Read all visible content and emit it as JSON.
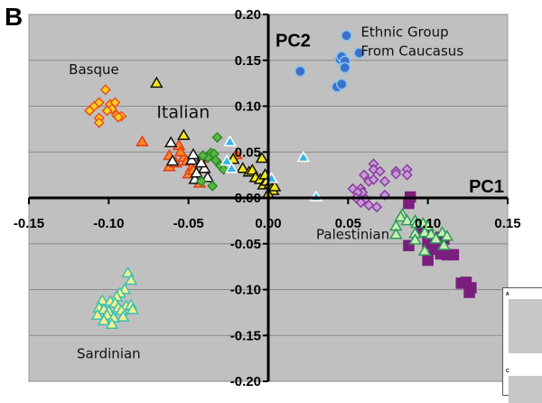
{
  "panel_label": "B",
  "chart_data": {
    "type": "scatter",
    "title": "",
    "xlabel": "PC1",
    "ylabel": "PC2",
    "xlim": [
      -0.15,
      0.15
    ],
    "ylim": [
      -0.2,
      0.2
    ],
    "grid": true,
    "background": "#c0c0c0",
    "x_ticks": [
      -0.15,
      -0.1,
      -0.05,
      0.0,
      0.05,
      0.1,
      0.15
    ],
    "x_tick_labels": [
      "-0.15",
      "-0.10",
      "-0.05",
      "0.00",
      "0.05",
      "0.10",
      "0.15"
    ],
    "y_ticks": [
      0.2,
      0.15,
      0.1,
      0.05,
      0.0,
      -0.05,
      -0.1,
      -0.15,
      -0.2
    ],
    "y_tick_labels": [
      "0.20",
      "0.15",
      "0.10",
      "0.05",
      "0.00",
      "-0.05",
      "-0.10",
      "-0.15",
      "-0.20"
    ],
    "annotations": [
      {
        "text": "Basque",
        "x": -0.125,
        "y": 0.135
      },
      {
        "text": "Italian",
        "x": -0.07,
        "y": 0.087
      },
      {
        "text": "Ethnic Group",
        "x": 0.058,
        "y": 0.176
      },
      {
        "text": "From Caucasus",
        "x": 0.058,
        "y": 0.155
      },
      {
        "text": "Palestinian",
        "x": 0.03,
        "y": -0.045
      },
      {
        "text": "Sardinian",
        "x": -0.12,
        "y": -0.175
      }
    ],
    "series": [
      {
        "name": "Ethnic Group From Caucasus",
        "marker": "circle",
        "fill": "#3f6fc8",
        "stroke": "#7ec4ee",
        "points": [
          [
            0.02,
            0.138
          ],
          [
            0.049,
            0.177
          ],
          [
            0.057,
            0.158
          ],
          [
            0.045,
            0.151
          ],
          [
            0.046,
            0.154
          ],
          [
            0.048,
            0.149
          ],
          [
            0.048,
            0.142
          ],
          [
            0.043,
            0.121
          ],
          [
            0.046,
            0.124
          ]
        ]
      },
      {
        "name": "Basque",
        "marker": "diamond",
        "fill": "#ffd21e",
        "stroke": "#e8501e",
        "points": [
          [
            -0.102,
            0.118
          ],
          [
            -0.112,
            0.095
          ],
          [
            -0.109,
            0.1
          ],
          [
            -0.106,
            0.104
          ],
          [
            -0.099,
            0.102
          ],
          [
            -0.096,
            0.104
          ],
          [
            -0.098,
            0.097
          ],
          [
            -0.095,
            0.09
          ],
          [
            -0.092,
            0.089
          ],
          [
            -0.106,
            0.087
          ],
          [
            -0.106,
            0.082
          ],
          [
            -0.094,
            0.088
          ],
          [
            -0.101,
            0.095
          ]
        ]
      },
      {
        "name": "Italian (orange)",
        "marker": "triangle",
        "fill": "#f78a1e",
        "stroke": "#e63c1e",
        "points": [
          [
            -0.079,
            0.061
          ],
          [
            -0.062,
            0.046
          ],
          [
            -0.062,
            0.034
          ],
          [
            -0.056,
            0.057
          ],
          [
            -0.053,
            0.044
          ],
          [
            -0.051,
            0.04
          ],
          [
            -0.048,
            0.033
          ],
          [
            -0.05,
            0.026
          ],
          [
            -0.047,
            0.03
          ],
          [
            -0.043,
            0.016
          ],
          [
            -0.041,
            0.043
          ],
          [
            -0.055,
            0.05
          ],
          [
            -0.058,
            0.038
          ],
          [
            -0.02,
            0.047
          ]
        ]
      },
      {
        "name": "Italian (white)",
        "marker": "triangle",
        "fill": "#ffffff",
        "stroke": "#111111",
        "points": [
          [
            -0.061,
            0.06
          ],
          [
            -0.06,
            0.04
          ],
          [
            -0.048,
            0.041
          ],
          [
            -0.046,
            0.02
          ],
          [
            -0.045,
            0.027
          ],
          [
            -0.041,
            0.045
          ],
          [
            -0.04,
            0.032
          ],
          [
            -0.038,
            0.022
          ],
          [
            -0.047,
            0.047
          ],
          [
            -0.042,
            0.038
          ]
        ]
      },
      {
        "name": "Italian (yellow)",
        "marker": "triangle",
        "fill": "#f2e71a",
        "stroke": "#111111",
        "points": [
          [
            -0.07,
            0.125
          ],
          [
            -0.053,
            0.068
          ],
          [
            -0.036,
            0.047
          ],
          [
            -0.022,
            0.042
          ],
          [
            -0.016,
            0.032
          ],
          [
            -0.012,
            0.028
          ],
          [
            -0.01,
            0.03
          ],
          [
            -0.008,
            0.022
          ],
          [
            -0.005,
            0.02
          ],
          [
            -0.004,
            0.043
          ],
          [
            -0.003,
            0.014
          ],
          [
            -0.001,
            0.018
          ],
          [
            0.001,
            0.015
          ],
          [
            0.002,
            0.01
          ],
          [
            0.003,
            0.008
          ],
          [
            0.004,
            0.012
          ],
          [
            -0.002,
            0.025
          ],
          [
            0.0,
            0.004
          ]
        ]
      },
      {
        "name": "Italian (green)",
        "marker": "diamond",
        "fill": "#59b83a",
        "stroke": "#2e8a2e",
        "points": [
          [
            -0.032,
            0.066
          ],
          [
            -0.036,
            0.049
          ],
          [
            -0.038,
            0.044
          ],
          [
            -0.034,
            0.048
          ],
          [
            -0.033,
            0.041
          ],
          [
            -0.041,
            0.046
          ],
          [
            -0.03,
            0.035
          ],
          [
            -0.028,
            0.031
          ],
          [
            -0.042,
            0.018
          ],
          [
            -0.035,
            0.013
          ]
        ]
      },
      {
        "name": "Italian (cyan)",
        "marker": "triangle",
        "fill": "#36b4e6",
        "stroke": "#ffffff",
        "points": [
          [
            -0.024,
            0.061
          ],
          [
            -0.026,
            0.04
          ],
          [
            -0.023,
            0.032
          ],
          [
            0.002,
            0.021
          ],
          [
            0.022,
            0.044
          ],
          [
            0.03,
            0.001
          ]
        ]
      },
      {
        "name": "Purple diamonds",
        "marker": "diamond",
        "fill": "#c89ad8",
        "stroke": "#8a3c9e",
        "points": [
          [
            0.066,
            0.037
          ],
          [
            0.066,
            0.031
          ],
          [
            0.07,
            0.029
          ],
          [
            0.08,
            0.029
          ],
          [
            0.087,
            0.031
          ],
          [
            0.08,
            0.026
          ],
          [
            0.087,
            0.025
          ],
          [
            0.06,
            0.025
          ],
          [
            0.063,
            0.018
          ],
          [
            0.066,
            0.02
          ],
          [
            0.053,
            0.01
          ],
          [
            0.058,
            0.01
          ],
          [
            0.073,
            0.018
          ],
          [
            0.059,
            0.006
          ],
          [
            0.056,
            0.006
          ],
          [
            0.055,
            0.0
          ],
          [
            0.061,
            -0.001
          ],
          [
            0.058,
            -0.005
          ],
          [
            0.063,
            -0.008
          ],
          [
            0.068,
            -0.01
          ],
          [
            0.073,
            0.003
          ]
        ]
      },
      {
        "name": "Palestinian (squares)",
        "marker": "square",
        "fill": "#7a1f7e",
        "stroke": "#7a1f7e",
        "points": [
          [
            0.089,
            0.001
          ],
          [
            0.088,
            -0.006
          ],
          [
            0.096,
            -0.033
          ],
          [
            0.098,
            -0.032
          ],
          [
            0.1,
            -0.04
          ],
          [
            0.108,
            -0.043
          ],
          [
            0.11,
            -0.045
          ],
          [
            0.103,
            -0.05
          ],
          [
            0.1,
            -0.05
          ],
          [
            0.088,
            -0.052
          ],
          [
            0.104,
            -0.056
          ],
          [
            0.108,
            -0.061
          ],
          [
            0.112,
            -0.062
          ],
          [
            0.116,
            -0.062
          ],
          [
            0.1,
            -0.068
          ],
          [
            0.121,
            -0.093
          ],
          [
            0.124,
            -0.092
          ],
          [
            0.127,
            -0.098
          ],
          [
            0.126,
            -0.103
          ]
        ]
      },
      {
        "name": "Palestinian (green triangles)",
        "marker": "triangle",
        "fill": "#c8f0b4",
        "stroke": "#2f9a5a",
        "points": [
          [
            0.084,
            -0.018
          ],
          [
            0.083,
            -0.021
          ],
          [
            0.087,
            -0.025
          ],
          [
            0.08,
            -0.031
          ],
          [
            0.08,
            -0.04
          ],
          [
            0.092,
            -0.025
          ],
          [
            0.093,
            -0.028
          ],
          [
            0.097,
            -0.028
          ],
          [
            0.1,
            -0.031
          ],
          [
            0.092,
            -0.039
          ],
          [
            0.098,
            -0.038
          ],
          [
            0.102,
            -0.04
          ],
          [
            0.109,
            -0.038
          ],
          [
            0.112,
            -0.042
          ],
          [
            0.11,
            -0.052
          ],
          [
            0.098,
            -0.058
          ],
          [
            0.092,
            -0.046
          ],
          [
            0.105,
            -0.045
          ]
        ]
      },
      {
        "name": "Sardinian",
        "marker": "triangle",
        "fill": "#f5f08c",
        "stroke": "#3cc0b4",
        "points": [
          [
            -0.088,
            -0.082
          ],
          [
            -0.086,
            -0.09
          ],
          [
            -0.09,
            -0.1
          ],
          [
            -0.093,
            -0.104
          ],
          [
            -0.095,
            -0.108
          ],
          [
            -0.104,
            -0.112
          ],
          [
            -0.099,
            -0.113
          ],
          [
            -0.096,
            -0.115
          ],
          [
            -0.106,
            -0.12
          ],
          [
            -0.103,
            -0.122
          ],
          [
            -0.1,
            -0.124
          ],
          [
            -0.094,
            -0.12
          ],
          [
            -0.089,
            -0.118
          ],
          [
            -0.086,
            -0.117
          ],
          [
            -0.085,
            -0.122
          ],
          [
            -0.107,
            -0.128
          ],
          [
            -0.101,
            -0.128
          ],
          [
            -0.097,
            -0.131
          ],
          [
            -0.103,
            -0.134
          ],
          [
            -0.098,
            -0.138
          ],
          [
            -0.092,
            -0.123
          ],
          [
            -0.091,
            -0.13
          ]
        ]
      }
    ]
  }
}
